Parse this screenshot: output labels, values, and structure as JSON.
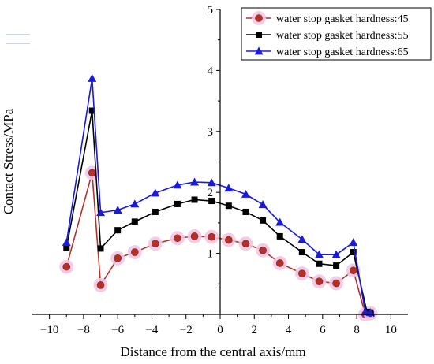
{
  "chart_data": {
    "type": "line",
    "title": "",
    "xlabel": "Distance from the central axis/mm",
    "ylabel": "Contact Stress/MPa",
    "xlim": [
      -11,
      11
    ],
    "ylim": [
      0,
      5
    ],
    "xticks": [
      -10,
      -8,
      -6,
      -4,
      -2,
      0,
      2,
      4,
      6,
      8,
      10
    ],
    "yticks": [
      1,
      2,
      3,
      4,
      5
    ],
    "xtick_labels": [
      "−10",
      "−8",
      "−6",
      "−4",
      "−2",
      "0",
      "2",
      "4",
      "6",
      "8",
      "10"
    ],
    "ytick_labels": [
      "1",
      "2",
      "3",
      "4",
      "5"
    ],
    "grid": false,
    "legend_position": "top-right",
    "series": [
      {
        "name": "water stop gasket hardness:45",
        "color": "#b5302a",
        "marker": "circle",
        "x": [
          -9.0,
          -7.5,
          -7.0,
          -6.0,
          -5.0,
          -3.8,
          -2.5,
          -1.5,
          -0.5,
          0.5,
          1.5,
          2.5,
          3.5,
          4.8,
          5.8,
          6.8,
          7.8,
          8.5,
          8.8
        ],
        "y": [
          0.78,
          2.32,
          0.48,
          0.92,
          1.02,
          1.16,
          1.25,
          1.28,
          1.27,
          1.22,
          1.16,
          1.05,
          0.84,
          0.67,
          0.54,
          0.51,
          0.72,
          0.0,
          0.02
        ]
      },
      {
        "name": "water stop gasket hardness:55",
        "color": "#000000",
        "marker": "square",
        "x": [
          -9.0,
          -7.5,
          -7.0,
          -6.0,
          -5.0,
          -3.8,
          -2.5,
          -1.5,
          -0.5,
          0.5,
          1.5,
          2.5,
          3.5,
          4.8,
          5.8,
          6.8,
          7.8,
          8.6,
          8.8
        ],
        "y": [
          1.09,
          3.34,
          1.08,
          1.38,
          1.52,
          1.68,
          1.81,
          1.88,
          1.86,
          1.78,
          1.68,
          1.54,
          1.28,
          1.02,
          0.83,
          0.8,
          1.02,
          0.04,
          0.03
        ]
      },
      {
        "name": "water stop gasket hardness:65",
        "color": "#1a1adc",
        "marker": "triangle",
        "x": [
          -9.0,
          -7.5,
          -7.0,
          -6.0,
          -5.0,
          -3.8,
          -2.5,
          -1.5,
          -0.5,
          0.5,
          1.5,
          2.5,
          3.5,
          4.8,
          5.8,
          6.8,
          7.8,
          8.5,
          8.8
        ],
        "y": [
          1.18,
          3.87,
          1.67,
          1.71,
          1.81,
          1.99,
          2.12,
          2.17,
          2.16,
          2.07,
          1.97,
          1.8,
          1.51,
          1.23,
          0.98,
          0.98,
          1.18,
          0.04,
          0.03
        ]
      }
    ]
  }
}
